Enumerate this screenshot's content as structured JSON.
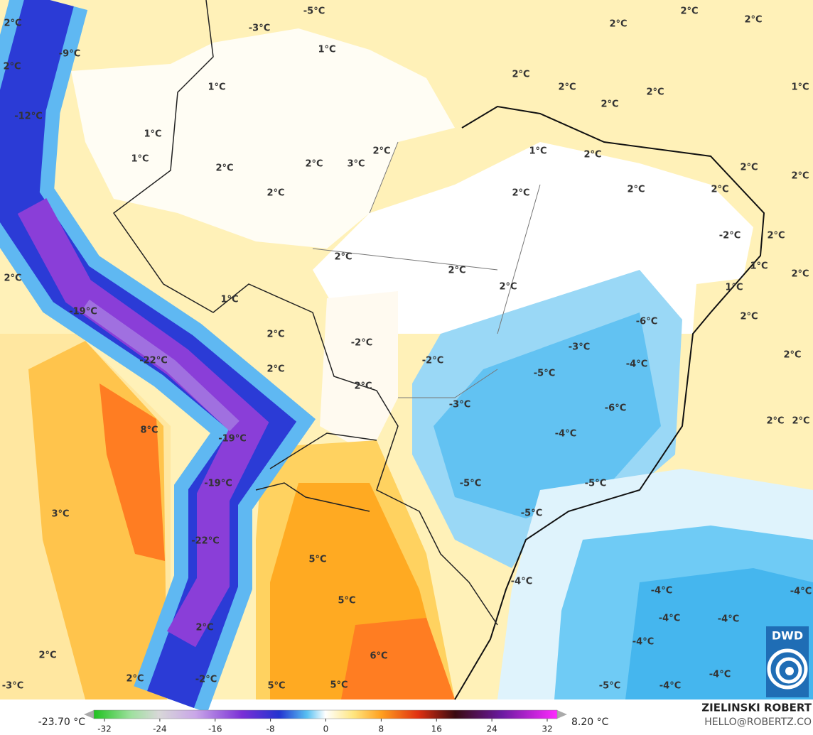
{
  "map": {
    "labels": [
      "2°C",
      "-5°C",
      "2°C",
      "2°C",
      "2°C",
      "2°C",
      "-3°C",
      "1°C",
      "-9°C",
      "2°C",
      "2°C",
      "2°C",
      "1°C",
      "1°C",
      "2°C",
      "-12°C",
      "1°C",
      "1°C",
      "2°C",
      "2°C",
      "1°C",
      "2°C",
      "2°C",
      "3°C",
      "2°C",
      "2°C",
      "2°C",
      "2°C",
      "2°C",
      "2°C",
      "-2°C",
      "2°C",
      "2°C",
      "2°C",
      "1°C",
      "2°C",
      "2°C",
      "2°C",
      "1°C",
      "1°C",
      "-19°C",
      "-6°C",
      "2°C",
      "2°C",
      "-2°C",
      "-3°C",
      "-22°C",
      "-2°C",
      "-4°C",
      "2°C",
      "2°C",
      "2°C",
      "-5°C",
      "-3°C",
      "-6°C",
      "8°C",
      "-19°C",
      "-4°C",
      "2°C",
      "2°C",
      "-19°C",
      "-5°C",
      "-5°C",
      "3°C",
      "-5°C",
      "-22°C",
      "5°C",
      "-4°C",
      "5°C",
      "-4°C",
      "-4°C",
      "-4°C",
      "-4°C",
      "2°C",
      "-4°C",
      "2°C",
      "6°C",
      "2°C",
      "-2°C",
      "-4°C",
      "-3°C",
      "5°C",
      "5°C",
      "-5°C",
      "-4°C"
    ],
    "logo": "DWD"
  },
  "colorbar": {
    "min_label": "-23.70 °C",
    "max_label": "8.20 °C",
    "ticks": [
      -32,
      -24,
      -16,
      -8,
      0,
      8,
      16,
      24,
      32
    ]
  },
  "credits": {
    "author": "ZIELINSKI ROBERT",
    "contact": "HELLO@ROBERTZ.CO"
  }
}
